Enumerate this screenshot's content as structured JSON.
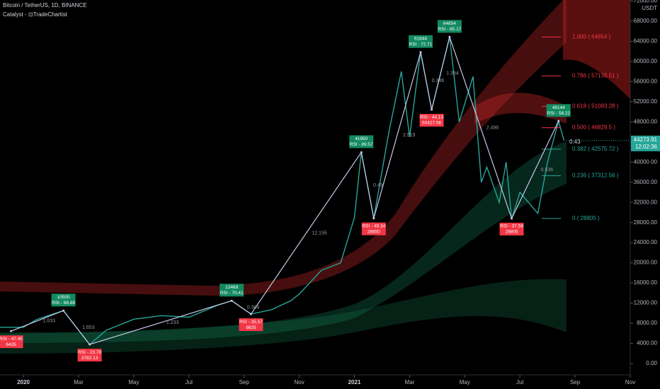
{
  "chart_data": {
    "type": "line",
    "title": "Bitcoin / TetherUS, 1D, BINANCE",
    "subtitle": "Catalyst - ⊡TradeChartist",
    "currency": "USDT",
    "xlim": [
      -0.85,
      22.0
    ],
    "ylim": [
      -2250,
      72200
    ],
    "xticks": [
      {
        "value": 0,
        "label": "2020"
      },
      {
        "value": 2,
        "label": "Mar"
      },
      {
        "value": 4,
        "label": "May"
      },
      {
        "value": 6,
        "label": "Jul"
      },
      {
        "value": 8,
        "label": "Sep"
      },
      {
        "value": 10,
        "label": "Nov"
      },
      {
        "value": 12,
        "label": "2021"
      },
      {
        "value": 14,
        "label": "Mar"
      },
      {
        "value": 16,
        "label": "May"
      },
      {
        "value": 18,
        "label": "Jul"
      },
      {
        "value": 20,
        "label": "Sep"
      },
      {
        "value": 22,
        "label": "Nov"
      }
    ],
    "yticks": [
      {
        "value": 0,
        "label": "0.00"
      },
      {
        "value": 4000,
        "label": "4000.00"
      },
      {
        "value": 8000,
        "label": "8000.00"
      },
      {
        "value": 12000,
        "label": "12000.00"
      },
      {
        "value": 16000,
        "label": "16000.00"
      },
      {
        "value": 20000,
        "label": "20000.00"
      },
      {
        "value": 24000,
        "label": "24000.00"
      },
      {
        "value": 28000,
        "label": "28000.00"
      },
      {
        "value": 32000,
        "label": "32000.00"
      },
      {
        "value": 36000,
        "label": "36000.00"
      },
      {
        "value": 40000,
        "label": "40000.00"
      },
      {
        "value": 44000,
        "label": "44000.00"
      },
      {
        "value": 48000,
        "label": "48000.00"
      },
      {
        "value": 52000,
        "label": "52000.00"
      },
      {
        "value": 56000,
        "label": "56000.00"
      },
      {
        "value": 60000,
        "label": "60000.00"
      },
      {
        "value": 64000,
        "label": "64000.00"
      },
      {
        "value": 68000,
        "label": "68000.00"
      },
      {
        "value": 72000,
        "label": "72000.00"
      }
    ],
    "x": [
      -0.85,
      0,
      0.5,
      1.45,
      2.4,
      3,
      4,
      5,
      6,
      7,
      7.55,
      8.25,
      9,
      9.7,
      10,
      10.8,
      11.5,
      12,
      12.25,
      12.7,
      13.25,
      13.7,
      14,
      14.4,
      14.8,
      15.45,
      15.8,
      16.3,
      16.6,
      16.8,
      17.25,
      17.5,
      17.7,
      18,
      18.65,
      19,
      19.4,
      19.6
    ],
    "series": [
      {
        "color": "#26a69a",
        "values": [
          7200,
          7200,
          8800,
          10500,
          3782,
          6600,
          8800,
          9500,
          9200,
          11500,
          12469,
          9825,
          10700,
          12500,
          13800,
          18500,
          20000,
          29000,
          41950,
          28850,
          46000,
          58000,
          45000,
          61844,
          50427,
          64854,
          48000,
          57000,
          36000,
          39000,
          32000,
          40000,
          28805,
          34000,
          29800,
          40000,
          48144,
          44273.91
        ]
      }
    ],
    "pivots": [
      {
        "x": -0.45,
        "price": 6435,
        "rsi": "RSI - 47.45",
        "kind": "low"
      },
      {
        "x": 1.45,
        "price": 10500,
        "rsi": "RSI - 68.88",
        "kind": "high"
      },
      {
        "x": 2.4,
        "price": 3782.13,
        "rsi": "RSI - 23.78",
        "kind": "low"
      },
      {
        "x": 7.55,
        "price": 12469,
        "rsi": "RSI - 70.41",
        "kind": "high"
      },
      {
        "x": 8.25,
        "price": 9825,
        "rsi": "RSI - 35.57",
        "kind": "low"
      },
      {
        "x": 12.25,
        "price": 41950,
        "rsi": "RSI - 89.57",
        "kind": "high"
      },
      {
        "x": 12.7,
        "price": 28850,
        "rsi": "RSI - 49.34",
        "kind": "low"
      },
      {
        "x": 14.4,
        "price": 61844,
        "rsi": "RSI - 72.71",
        "kind": "high"
      },
      {
        "x": 14.8,
        "price": 50427.56,
        "rsi": "RSI - 44.13",
        "kind": "low"
      },
      {
        "x": 15.45,
        "price": 64854,
        "rsi": "RSI - 65.17",
        "kind": "high"
      },
      {
        "x": 17.7,
        "price": 28805,
        "rsi": "RSI - 37.58",
        "kind": "low"
      },
      {
        "x": 19.4,
        "price": 48144,
        "rsi": "RSI - 58.22",
        "kind": "high"
      }
    ],
    "zigzag_ratios": [
      "1.033",
      "1.653",
      "1.233",
      "0.384",
      "12.155",
      "0.49",
      "2.519",
      "0.346",
      "1.364",
      "2.496",
      "0.536"
    ],
    "fib_levels": [
      {
        "value": 64854,
        "label": "1.000 ( 64854 )",
        "color": "#f23645"
      },
      {
        "value": 57139.51,
        "label": "0.786 ( 57139.51 )",
        "color": "#f23645"
      },
      {
        "value": 51083.28,
        "label": "0.618 ( 51083.28 )",
        "color": "#f23645"
      },
      {
        "value": 46829.5,
        "label": "0.500 ( 46829.5 )",
        "color": "#f23645"
      },
      {
        "value": 42575.72,
        "label": "0.382 ( 42575.72 )",
        "color": "#26a69a"
      },
      {
        "value": 37312.56,
        "label": "0.236 ( 37312.56 )",
        "color": "#26a69a"
      },
      {
        "value": 28805,
        "label": "0 ( 28805 )",
        "color": "#26a69a"
      }
    ],
    "annotation": "0.43",
    "last_price": 44273.91,
    "countdown": "12:02:36",
    "grid": false
  }
}
